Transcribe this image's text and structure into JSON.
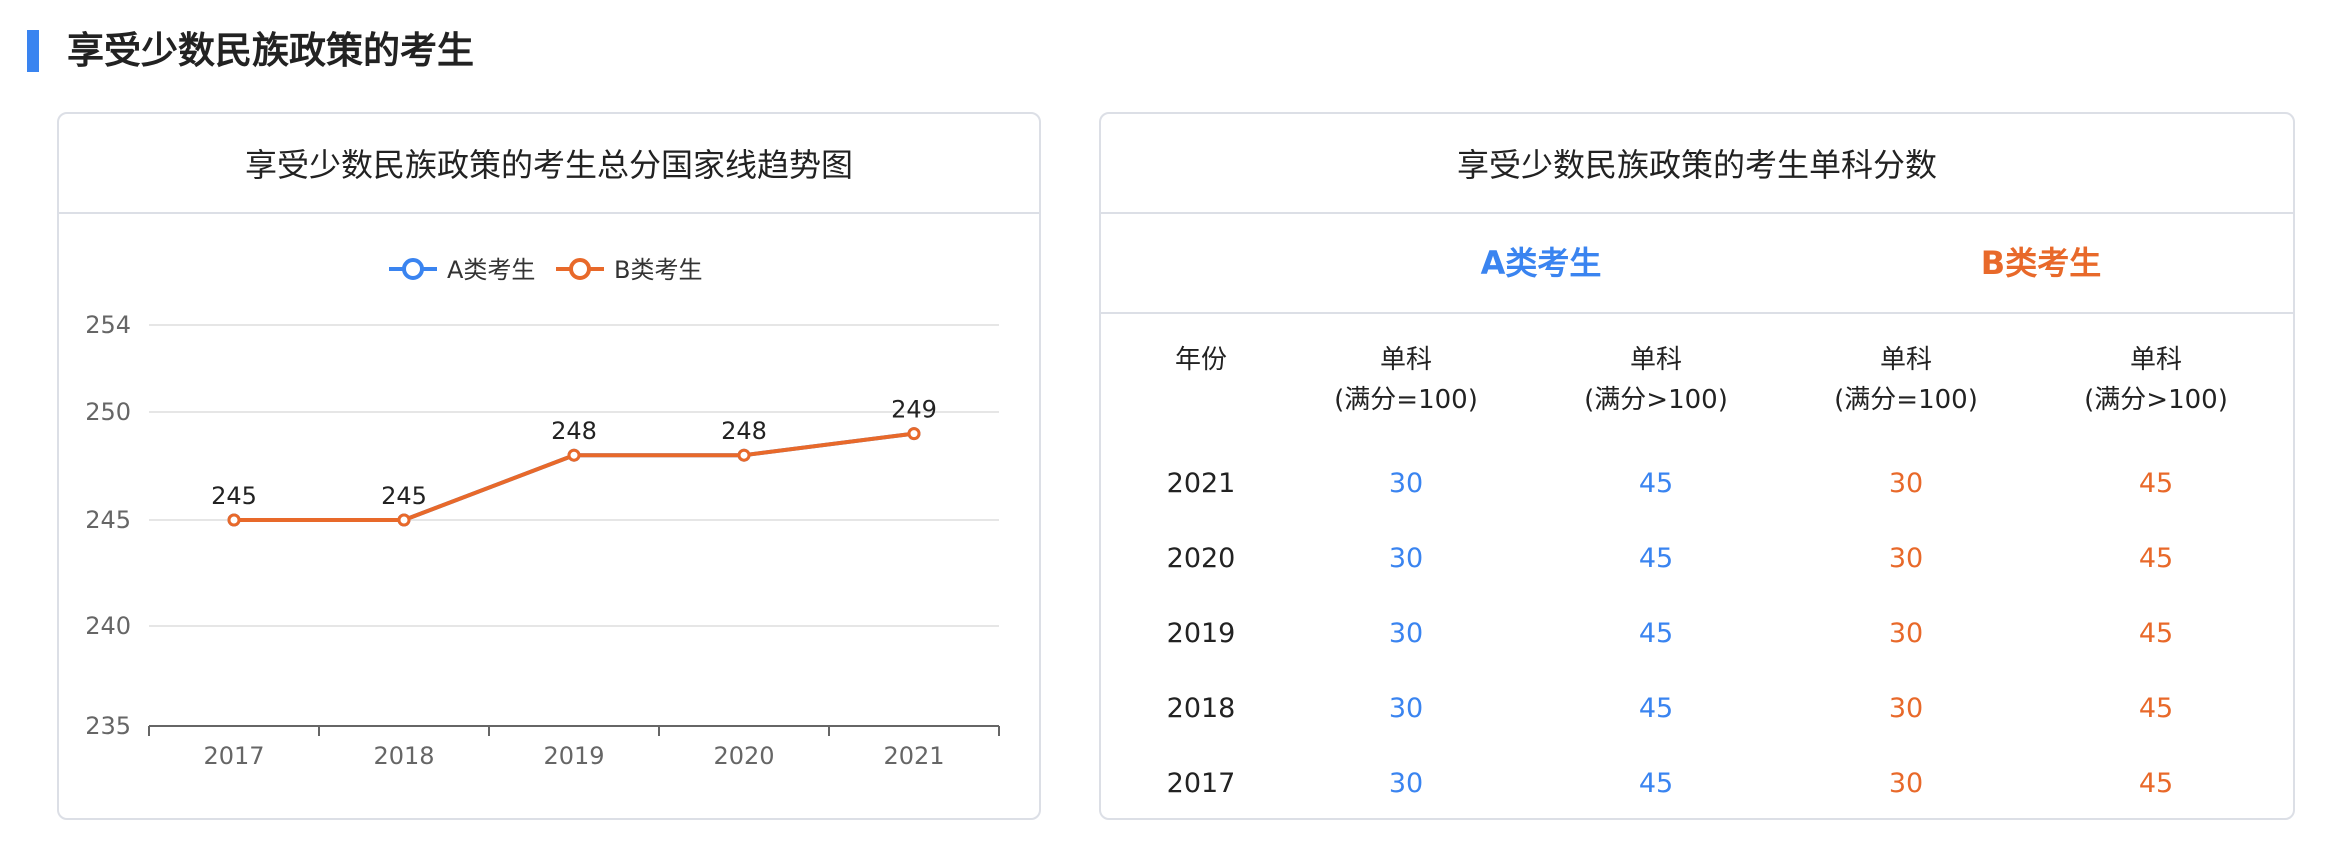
{
  "section": {
    "title": "享受少数民族政策的考生"
  },
  "chart_card": {
    "title": "享受少数民族政策的考生总分国家线趋势图"
  },
  "colors": {
    "seriesA": "#3a84f0",
    "seriesB": "#e8692a",
    "grid": "#e6e6e6",
    "axis": "#666666"
  },
  "chart_data": {
    "type": "line",
    "title": "享受少数民族政策的考生总分国家线趋势图",
    "categories": [
      "2017",
      "2018",
      "2019",
      "2020",
      "2021"
    ],
    "y_ticks": [
      "254",
      "250",
      "245",
      "240",
      "235"
    ],
    "ylim": [
      235,
      254
    ],
    "grid": true,
    "legend_position": "top-center",
    "series": [
      {
        "name": "A类考生",
        "values": [
          245,
          245,
          248,
          248,
          249
        ],
        "color": "#3a84f0",
        "labels_visible": false
      },
      {
        "name": "B类考生",
        "values": [
          245,
          245,
          248,
          248,
          249
        ],
        "color": "#e8692a",
        "labels_visible": true
      }
    ]
  },
  "table_card": {
    "title": "享受少数民族政策的考生单科分数",
    "group_a": "A类考生",
    "group_b": "B类考生",
    "headers": {
      "year": "年份",
      "col1_line1": "单科",
      "col1_line2": "(满分=100)",
      "col2_line1": "单科",
      "col2_line2": "(满分>100)",
      "col3_line1": "单科",
      "col3_line2": "(满分=100)",
      "col4_line1": "单科",
      "col4_line2": "(满分>100)"
    },
    "rows": [
      {
        "year": "2021",
        "a1": "30",
        "a2": "45",
        "b1": "30",
        "b2": "45"
      },
      {
        "year": "2020",
        "a1": "30",
        "a2": "45",
        "b1": "30",
        "b2": "45"
      },
      {
        "year": "2019",
        "a1": "30",
        "a2": "45",
        "b1": "30",
        "b2": "45"
      },
      {
        "year": "2018",
        "a1": "30",
        "a2": "45",
        "b1": "30",
        "b2": "45"
      },
      {
        "year": "2017",
        "a1": "30",
        "a2": "45",
        "b1": "30",
        "b2": "45"
      }
    ]
  }
}
